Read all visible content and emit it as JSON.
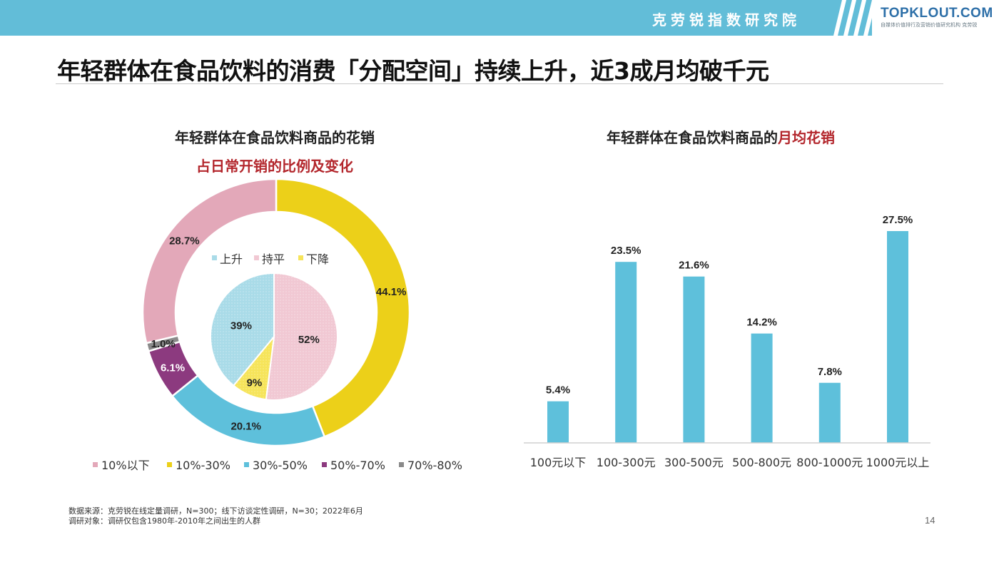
{
  "header": {
    "institute": "克劳锐指数研究院",
    "logo_main": "TOPKLOUT.COM",
    "logo_sub": "自媒体价值排行及营销价值研究机构 克劳锐",
    "brand_color": "#62bdd8"
  },
  "page": {
    "title": "年轻群体在食品饮料的消费「分配空间」持续上升，近3成月均破千元",
    "page_number": "14"
  },
  "left_chart": {
    "title_line1": "年轻群体在食品饮料商品的花销",
    "title_line2": "占日常开销的比例及变化"
  },
  "right_chart": {
    "title_prefix": "年轻群体在食品饮料商品的",
    "title_highlight": "月均花销"
  },
  "footnotes": {
    "source": "数据来源：克劳锐在线定量调研，N=300；线下访谈定性调研，N=30；2022年6月",
    "subject": "调研对象：调研仅包含1980年-2010年之间出生的人群"
  },
  "chart_data": [
    {
      "type": "pie",
      "variant": "donut",
      "categories": [
        "10%以下",
        "10%-30%",
        "30%-50%",
        "50%-70%",
        "70%-80%"
      ],
      "values": [
        28.7,
        44.1,
        20.1,
        6.1,
        1.0
      ],
      "labels": [
        "28.7%",
        "44.1%",
        "20.1%",
        "6.1%",
        "1.0%"
      ],
      "colors": [
        "#e3a8b9",
        "#ecd019",
        "#5ec0db",
        "#8c3a7f",
        "#8a8a8a"
      ],
      "legend_position": "bottom"
    },
    {
      "type": "pie",
      "categories": [
        "上升",
        "持平",
        "下降"
      ],
      "values": [
        39,
        52,
        9
      ],
      "labels": [
        "39%",
        "52%",
        "9%"
      ],
      "colors": [
        "#a9dbe8",
        "#f1c8d3",
        "#f6e45a"
      ],
      "legend_position": "top"
    },
    {
      "type": "bar",
      "categories": [
        "100元以下",
        "100-300元",
        "300-500元",
        "500-800元",
        "800-1000元",
        "1000元以上"
      ],
      "values": [
        5.4,
        23.5,
        21.6,
        14.2,
        7.8,
        27.5
      ],
      "labels": [
        "5.4%",
        "23.5%",
        "21.6%",
        "14.2%",
        "7.8%",
        "27.5%"
      ],
      "color": "#5ec0db",
      "ylim": [
        0,
        30
      ],
      "grid": false
    }
  ]
}
